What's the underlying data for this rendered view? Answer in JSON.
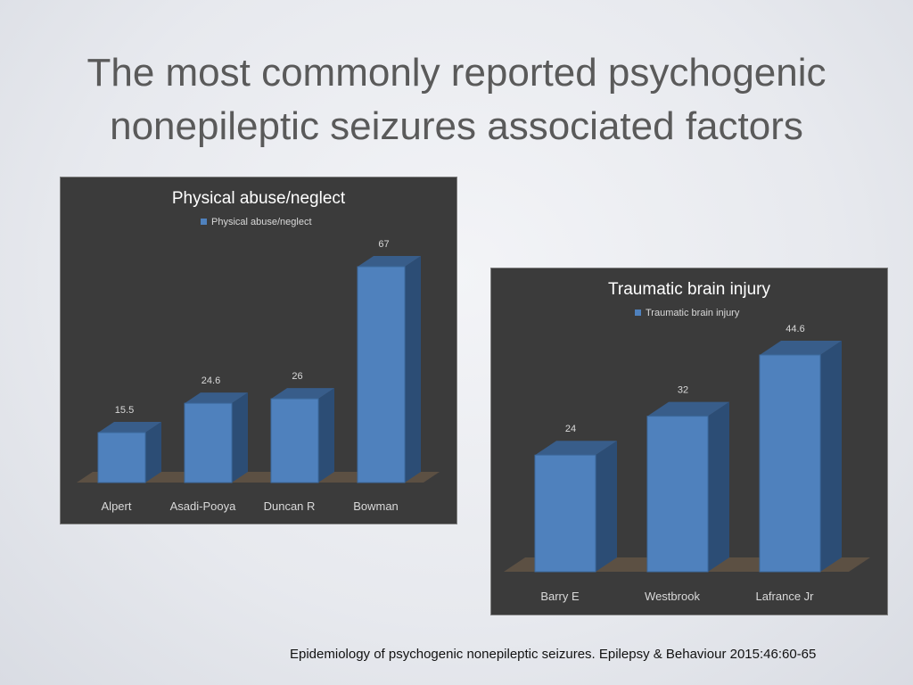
{
  "slide": {
    "title_line1": "The most commonly reported psychogenic",
    "title_line2": "nonepileptic seizures associated factors",
    "citation": "Epidemiology of psychogenic nonepileptic seizures. Epilepsy & Behaviour 2015:46:60-65"
  },
  "colors": {
    "panel_bg": "#3b3b3b",
    "bar_front": "#4f81bd",
    "bar_side": "#2c4d75",
    "bar_top": "#385d8a",
    "floor": "#5c5043",
    "text": "#d9d9d9"
  },
  "chart_data": [
    {
      "type": "bar",
      "title": "Physical abuse/neglect",
      "legend": "Physical abuse/neglect",
      "legend_position": "top",
      "categories": [
        "Alpert",
        "Asadi-Pooya",
        "Duncan R",
        "Bowman"
      ],
      "values": [
        15.5,
        24.6,
        26,
        67
      ],
      "value_labels": [
        "15.5",
        "24.6",
        "26",
        "67"
      ],
      "ylim": [
        0,
        67
      ],
      "grid": false,
      "style": "3d-column"
    },
    {
      "type": "bar",
      "title": "Traumatic brain injury",
      "legend": "Traumatic brain injury",
      "legend_position": "top",
      "categories": [
        "Barry E",
        "Westbrook",
        "Lafrance Jr"
      ],
      "values": [
        24,
        32,
        44.6
      ],
      "value_labels": [
        "24",
        "32",
        "44.6"
      ],
      "ylim": [
        0,
        44.6
      ],
      "grid": false,
      "style": "3d-column"
    }
  ]
}
